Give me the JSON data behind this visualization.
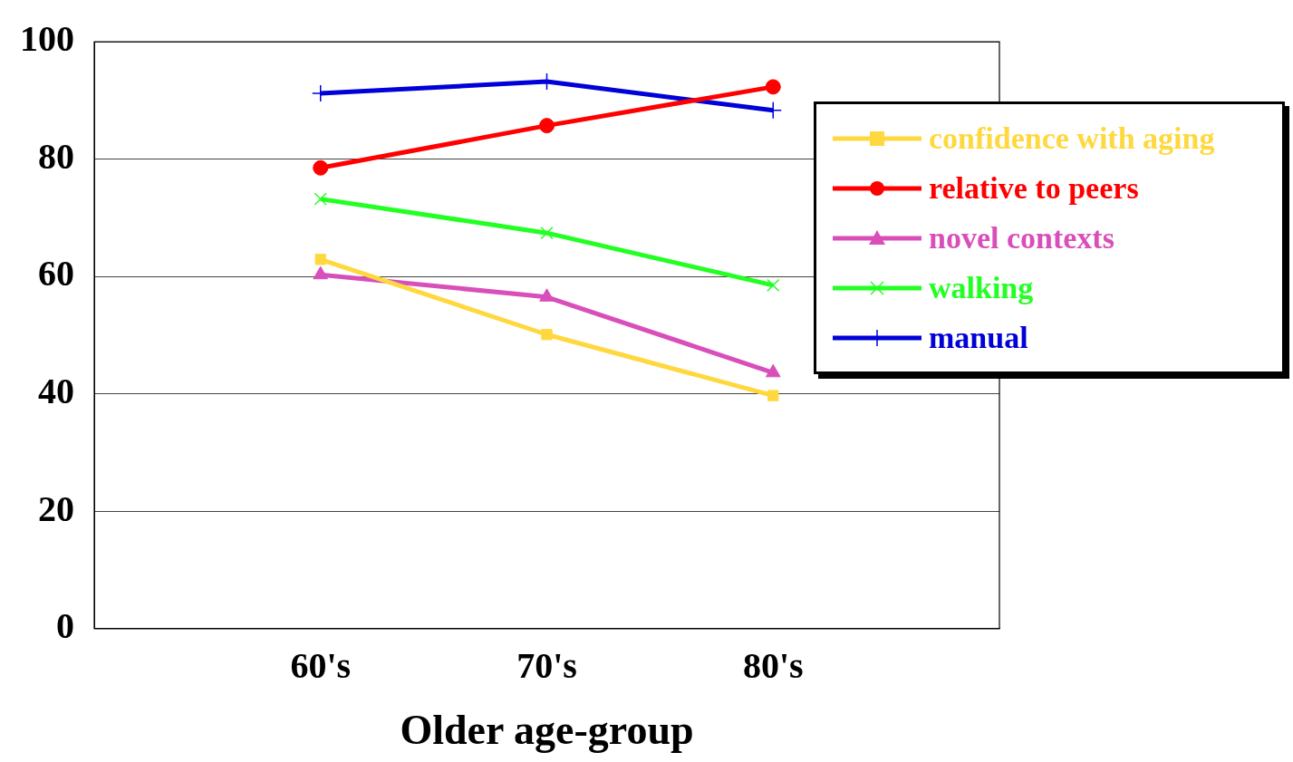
{
  "chart_data": {
    "type": "line",
    "xlabel": "Older age-group",
    "categories": [
      null,
      "60's",
      "70's",
      "80's",
      null
    ],
    "ylim": [
      0,
      100
    ],
    "yticks": [
      0,
      20,
      40,
      60,
      80,
      100
    ],
    "grid": "y",
    "legend": "right",
    "series": [
      {
        "name": "confidence with aging",
        "color": "#ffd83f",
        "marker": "square",
        "values": [
          null,
          62.9,
          50.1,
          39.7,
          null
        ]
      },
      {
        "name": "relative to peers",
        "color": "#ff0000",
        "marker": "circle",
        "values": [
          null,
          78.5,
          85.7,
          92.3,
          null
        ]
      },
      {
        "name": "novel contexts",
        "color": "#d94fb9",
        "marker": "triangle",
        "values": [
          null,
          60.3,
          56.5,
          43.6,
          null
        ]
      },
      {
        "name": "walking",
        "color": "#22ff22",
        "marker": "x",
        "values": [
          null,
          73.2,
          67.4,
          58.5,
          null
        ]
      },
      {
        "name": "manual",
        "color": "#0000d8",
        "marker": "cross",
        "values": [
          null,
          91.2,
          93.2,
          88.3,
          null
        ]
      }
    ]
  }
}
